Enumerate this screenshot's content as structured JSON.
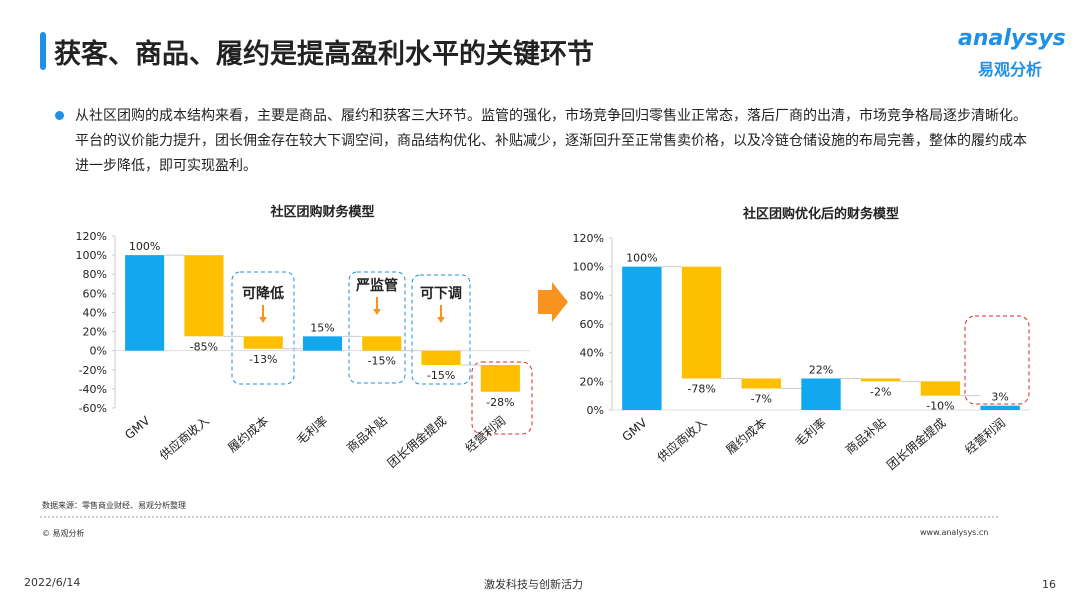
{
  "header": {
    "title": "获客、商品、履约是提高盈利水平的关键环节",
    "logo": "analysys",
    "logo_sub": "易观分析"
  },
  "paragraph": "从社区团购的成本结构来看，主要是商品、履约和获客三大环节。监管的强化，市场竞争回归零售业正常态，落后厂商的出清，市场竞争格局逐步清晰化。平台的议价能力提升，团长佣金存在较大下调空间，商品结构优化、补贴减少，逐渐回升至正常售卖价格，以及冷链仓储设施的布局完善，整体的履约成本进一步降低，即可实现盈利。",
  "chart_data": [
    {
      "type": "waterfall",
      "title": "社区团购财务模型",
      "categories": [
        "GMV",
        "供应商收入",
        "履约成本",
        "毛利率",
        "商品补贴",
        "团长佣金提成",
        "经营利润"
      ],
      "values": [
        100,
        -85,
        -13,
        15,
        -15,
        -15,
        -28
      ],
      "value_labels": [
        "100%",
        "-85%",
        "-13%",
        "15%",
        "-15%",
        "-15%",
        "-28%"
      ],
      "colors": [
        "#12a8f0",
        "#fdbf00",
        "#fdbf00",
        "#12a8f0",
        "#fdbf00",
        "#fdbf00",
        "#fdbf00"
      ],
      "ylim": [
        -60,
        120
      ],
      "yticks": [
        {
          "value": -60,
          "label": "-60%"
        },
        {
          "value": -40,
          "label": "-40%"
        },
        {
          "value": -20,
          "label": "-20%"
        },
        {
          "value": 0,
          "label": "0%"
        },
        {
          "value": 20,
          "label": "20%"
        },
        {
          "value": 40,
          "label": "40%"
        },
        {
          "value": 60,
          "label": "60%"
        },
        {
          "value": 80,
          "label": "80%"
        },
        {
          "value": 100,
          "label": "100%"
        },
        {
          "value": 120,
          "label": "120%"
        }
      ],
      "annotations": [
        "可降低",
        "严监管",
        "可下调"
      ]
    },
    {
      "type": "waterfall",
      "title": "社区团购优化后的财务模型",
      "categories": [
        "GMV",
        "供应商收入",
        "履约成本",
        "毛利率",
        "商品补贴",
        "团长佣金提成",
        "经营利润"
      ],
      "values": [
        100,
        -78,
        -7,
        22,
        -2,
        -10,
        3
      ],
      "value_labels": [
        "100%",
        "-78%",
        "-7%",
        "22%",
        "-2%",
        "-10%",
        "3%"
      ],
      "colors": [
        "#12a8f0",
        "#fdbf00",
        "#fdbf00",
        "#12a8f0",
        "#fdbf00",
        "#fdbf00",
        "#12a8f0"
      ],
      "ylim": [
        0,
        120
      ],
      "yticks": [
        {
          "value": 0,
          "label": "0%"
        },
        {
          "value": 20,
          "label": "20%"
        },
        {
          "value": 40,
          "label": "40%"
        },
        {
          "value": 60,
          "label": "60%"
        },
        {
          "value": 80,
          "label": "80%"
        },
        {
          "value": 100,
          "label": "100%"
        },
        {
          "value": 120,
          "label": "120%"
        }
      ]
    }
  ],
  "footer": {
    "source": "数据来源：零售商业财经、易观分析整理",
    "copyright": "© 易观分析",
    "website": "www.analysys.cn",
    "date": "2022/6/14",
    "slogan": "激发科技与创新活力",
    "page": "16"
  }
}
